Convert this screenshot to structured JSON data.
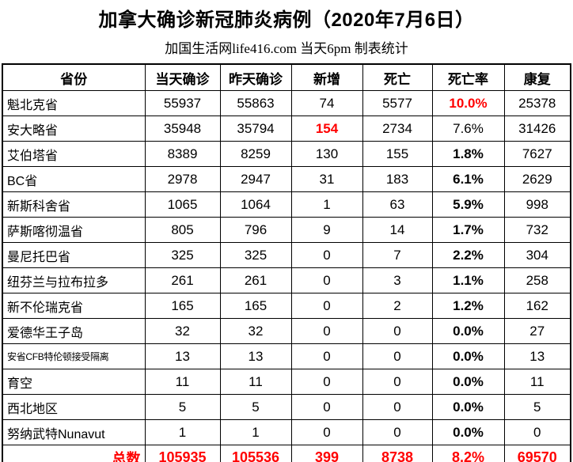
{
  "title": "加拿大确诊新冠肺炎病例（2020年7月6日）",
  "subtitle": "加国生活网life416.com 当天6pm 制表统计",
  "colors": {
    "highlight": "#ff0000",
    "text": "#000000",
    "border": "#000000",
    "background": "#ffffff"
  },
  "table": {
    "headers": [
      "省份",
      "当天确诊",
      "昨天确诊",
      "新增",
      "死亡",
      "死亡率",
      "康复"
    ],
    "rows": [
      {
        "province": "魁北克省",
        "today": "55937",
        "yesterday": "55863",
        "new": "74",
        "deaths": "5577",
        "rate": "10.0%",
        "recovered": "25378",
        "rate_style": "red",
        "new_style": "normal",
        "province_small": false
      },
      {
        "province": "安大略省",
        "today": "35948",
        "yesterday": "35794",
        "new": "154",
        "deaths": "2734",
        "rate": "7.6%",
        "recovered": "31426",
        "rate_style": "normal",
        "new_style": "red",
        "province_small": false
      },
      {
        "province": "艾伯塔省",
        "today": "8389",
        "yesterday": "8259",
        "new": "130",
        "deaths": "155",
        "rate": "1.8%",
        "recovered": "7627",
        "rate_style": "bold",
        "new_style": "normal",
        "province_small": false
      },
      {
        "province": "BC省",
        "today": "2978",
        "yesterday": "2947",
        "new": "31",
        "deaths": "183",
        "rate": "6.1%",
        "recovered": "2629",
        "rate_style": "bold",
        "new_style": "normal",
        "province_small": false
      },
      {
        "province": "新斯科舍省",
        "today": "1065",
        "yesterday": "1064",
        "new": "1",
        "deaths": "63",
        "rate": "5.9%",
        "recovered": "998",
        "rate_style": "bold",
        "new_style": "normal",
        "province_small": false
      },
      {
        "province": "萨斯喀彻温省",
        "today": "805",
        "yesterday": "796",
        "new": "9",
        "deaths": "14",
        "rate": "1.7%",
        "recovered": "732",
        "rate_style": "bold",
        "new_style": "normal",
        "province_small": false
      },
      {
        "province": "曼尼托巴省",
        "today": "325",
        "yesterday": "325",
        "new": "0",
        "deaths": "7",
        "rate": "2.2%",
        "recovered": "304",
        "rate_style": "bold",
        "new_style": "normal",
        "province_small": false
      },
      {
        "province": "纽芬兰与拉布拉多",
        "today": "261",
        "yesterday": "261",
        "new": "0",
        "deaths": "3",
        "rate": "1.1%",
        "recovered": "258",
        "rate_style": "bold",
        "new_style": "normal",
        "province_small": false
      },
      {
        "province": "新不伦瑞克省",
        "today": "165",
        "yesterday": "165",
        "new": "0",
        "deaths": "2",
        "rate": "1.2%",
        "recovered": "162",
        "rate_style": "bold",
        "new_style": "normal",
        "province_small": false
      },
      {
        "province": "爱德华王子岛",
        "today": "32",
        "yesterday": "32",
        "new": "0",
        "deaths": "0",
        "rate": "0.0%",
        "recovered": "27",
        "rate_style": "bold",
        "new_style": "normal",
        "province_small": false
      },
      {
        "province": "安省CFB特伦顿接受隔离",
        "today": "13",
        "yesterday": "13",
        "new": "0",
        "deaths": "0",
        "rate": "0.0%",
        "recovered": "13",
        "rate_style": "bold",
        "new_style": "normal",
        "province_small": true
      },
      {
        "province": "育空",
        "today": "11",
        "yesterday": "11",
        "new": "0",
        "deaths": "0",
        "rate": "0.0%",
        "recovered": "11",
        "rate_style": "bold",
        "new_style": "normal",
        "province_small": false
      },
      {
        "province": "西北地区",
        "today": "5",
        "yesterday": "5",
        "new": "0",
        "deaths": "0",
        "rate": "0.0%",
        "recovered": "5",
        "rate_style": "bold",
        "new_style": "normal",
        "province_small": false
      },
      {
        "province": "努纳武特Nunavut",
        "today": "1",
        "yesterday": "1",
        "new": "0",
        "deaths": "0",
        "rate": "0.0%",
        "recovered": "0",
        "rate_style": "bold",
        "new_style": "normal",
        "province_small": false
      }
    ],
    "total": {
      "label": "总数",
      "today": "105935",
      "yesterday": "105536",
      "new": "399",
      "deaths": "8738",
      "rate": "8.2%",
      "recovered": "69570"
    }
  }
}
